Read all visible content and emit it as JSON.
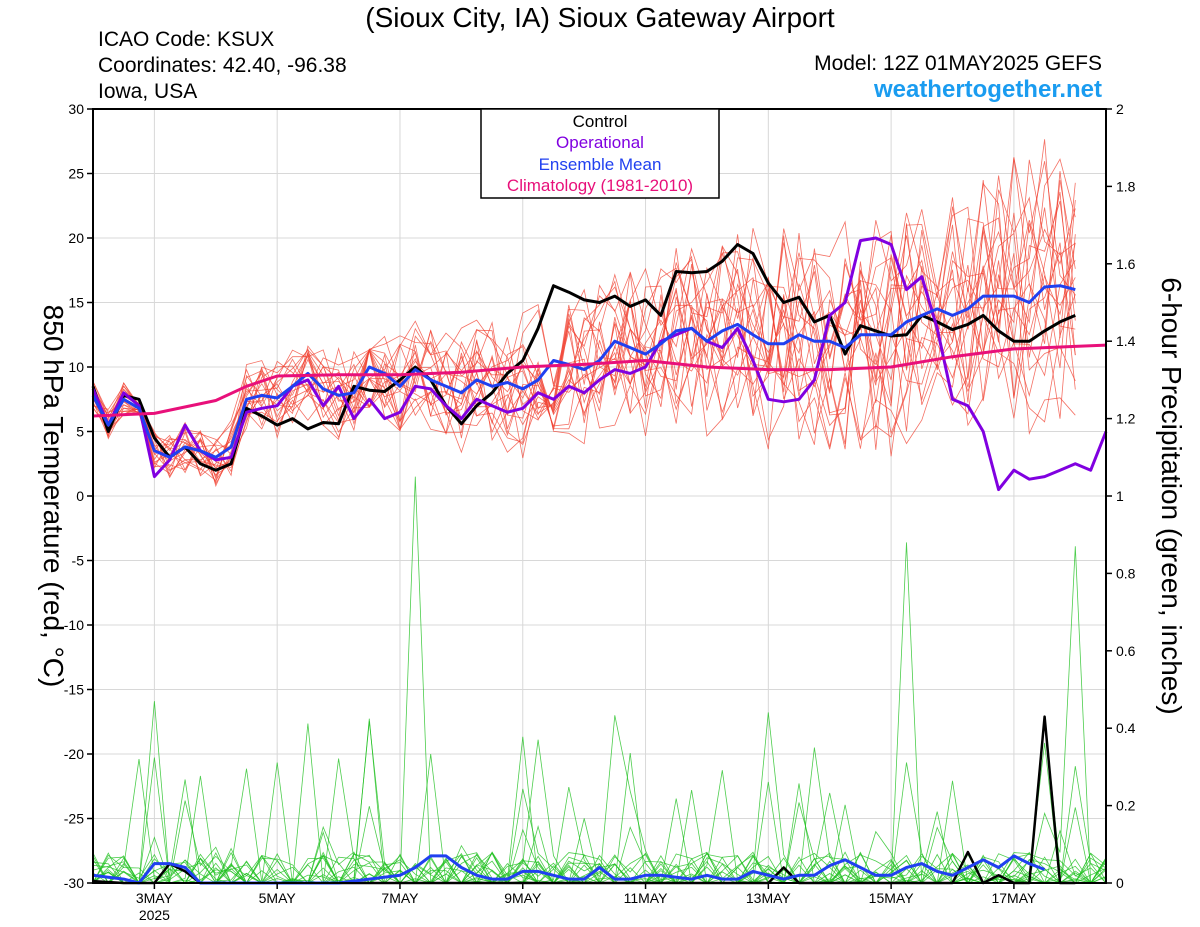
{
  "header": {
    "title": "(Sioux City, IA) Sioux Gateway Airport",
    "icao": "ICAO Code: KSUX",
    "coordinates": "Coordinates: 42.40, -96.38",
    "region": "Iowa, USA",
    "model": "Model: 12Z 01MAY2025 GEFS",
    "site": "weathertogether.net"
  },
  "colors": {
    "control": "#000000",
    "operational": "#8000e0",
    "ensemble_mean": "#2040f0",
    "climatology": "#e8107a",
    "members_temp": "#f04030",
    "members_precip": "#20c020",
    "site": "#1a9cf0"
  },
  "chart_data": {
    "type": "line",
    "title": "(Sioux City, IA) Sioux Gateway Airport",
    "ylabel": "850 hPa Temperature (red, °C)",
    "y2label": "6-hour Precipitation (green, inches)",
    "ylim": [
      -30,
      30
    ],
    "y2lim": [
      0,
      2
    ],
    "yticks": [
      30,
      25,
      20,
      15,
      10,
      5,
      0,
      -5,
      -10,
      -15,
      -20,
      -25,
      -30
    ],
    "y2ticks": [
      2,
      1.8,
      1.6,
      1.4,
      1.2,
      1,
      0.8,
      0.6,
      0.4,
      0.2,
      0
    ],
    "x_unit": "days since 01MAY2025 00Z",
    "xlim": [
      1.0,
      17.5
    ],
    "xticks": [
      {
        "x": 2,
        "label": "3MAY",
        "sub": "2025"
      },
      {
        "x": 4,
        "label": "5MAY",
        "sub": ""
      },
      {
        "x": 6,
        "label": "7MAY",
        "sub": ""
      },
      {
        "x": 8,
        "label": "9MAY",
        "sub": ""
      },
      {
        "x": 10,
        "label": "11MAY",
        "sub": ""
      },
      {
        "x": 12,
        "label": "13MAY",
        "sub": ""
      },
      {
        "x": 14,
        "label": "15MAY",
        "sub": ""
      },
      {
        "x": 16,
        "label": "17MAY",
        "sub": ""
      }
    ],
    "legend": {
      "position": "top-center",
      "entries": [
        "Control",
        "Operational",
        "Ensemble Mean",
        "Climatology (1981-2010)"
      ]
    },
    "series": [
      {
        "name": "Control",
        "axis": "left",
        "points": [
          [
            1.0,
            8.5
          ],
          [
            1.25,
            5.0
          ],
          [
            1.5,
            7.8
          ],
          [
            1.75,
            7.5
          ],
          [
            2.0,
            4.5
          ],
          [
            2.25,
            3.0
          ],
          [
            2.5,
            3.8
          ],
          [
            2.75,
            2.5
          ],
          [
            3.0,
            2.0
          ],
          [
            3.25,
            2.5
          ],
          [
            3.5,
            6.8
          ],
          [
            3.75,
            6.2
          ],
          [
            4.0,
            5.5
          ],
          [
            4.25,
            6.0
          ],
          [
            4.5,
            5.2
          ],
          [
            4.75,
            5.7
          ],
          [
            5.0,
            5.6
          ],
          [
            5.25,
            8.5
          ],
          [
            5.5,
            8.2
          ],
          [
            5.75,
            8.1
          ],
          [
            6.0,
            9.0
          ],
          [
            6.25,
            10.0
          ],
          [
            6.5,
            9.0
          ],
          [
            6.75,
            7.0
          ],
          [
            7.0,
            5.6
          ],
          [
            7.25,
            7.0
          ],
          [
            7.5,
            8.0
          ],
          [
            7.75,
            9.5
          ],
          [
            8.0,
            10.5
          ],
          [
            8.25,
            13.0
          ],
          [
            8.5,
            16.3
          ],
          [
            8.75,
            15.8
          ],
          [
            9.0,
            15.2
          ],
          [
            9.25,
            15.0
          ],
          [
            9.5,
            15.5
          ],
          [
            9.75,
            14.7
          ],
          [
            10.0,
            15.2
          ],
          [
            10.25,
            14.0
          ],
          [
            10.5,
            17.4
          ],
          [
            10.75,
            17.3
          ],
          [
            11.0,
            17.4
          ],
          [
            11.25,
            18.2
          ],
          [
            11.5,
            19.5
          ],
          [
            11.75,
            18.8
          ],
          [
            12.0,
            16.5
          ],
          [
            12.25,
            15.0
          ],
          [
            12.5,
            15.4
          ],
          [
            12.75,
            13.5
          ],
          [
            13.0,
            14.0
          ],
          [
            13.25,
            11.0
          ],
          [
            13.5,
            13.2
          ],
          [
            13.75,
            12.8
          ],
          [
            14.0,
            12.4
          ],
          [
            14.25,
            12.5
          ],
          [
            14.5,
            14.0
          ],
          [
            14.75,
            13.5
          ],
          [
            15.0,
            12.9
          ],
          [
            15.25,
            13.3
          ],
          [
            15.5,
            14.0
          ],
          [
            15.75,
            12.8
          ],
          [
            16.0,
            12.0
          ],
          [
            16.25,
            12.0
          ],
          [
            16.5,
            12.8
          ],
          [
            16.75,
            13.5
          ],
          [
            17.0,
            14.0
          ]
        ]
      },
      {
        "name": "Operational",
        "axis": "left",
        "points": [
          [
            1.0,
            8.3
          ],
          [
            1.25,
            5.5
          ],
          [
            1.5,
            8.0
          ],
          [
            1.75,
            7.0
          ],
          [
            2.0,
            1.5
          ],
          [
            2.25,
            2.8
          ],
          [
            2.5,
            5.5
          ],
          [
            2.75,
            3.5
          ],
          [
            3.0,
            2.8
          ],
          [
            3.25,
            3.0
          ],
          [
            3.5,
            6.5
          ],
          [
            3.75,
            6.8
          ],
          [
            4.0,
            7.0
          ],
          [
            4.25,
            8.5
          ],
          [
            4.5,
            9.0
          ],
          [
            4.75,
            7.0
          ],
          [
            5.0,
            8.5
          ],
          [
            5.25,
            6.0
          ],
          [
            5.5,
            7.5
          ],
          [
            5.75,
            6.0
          ],
          [
            6.0,
            6.5
          ],
          [
            6.25,
            8.5
          ],
          [
            6.5,
            8.3
          ],
          [
            6.75,
            7.0
          ],
          [
            7.0,
            6.0
          ],
          [
            7.25,
            7.5
          ],
          [
            7.5,
            7.0
          ],
          [
            7.75,
            6.5
          ],
          [
            8.0,
            6.8
          ],
          [
            8.25,
            8.0
          ],
          [
            8.5,
            7.5
          ],
          [
            8.75,
            8.5
          ],
          [
            9.0,
            8.0
          ],
          [
            9.25,
            9.0
          ],
          [
            9.5,
            9.8
          ],
          [
            9.75,
            9.5
          ],
          [
            10.0,
            10.0
          ],
          [
            10.25,
            12.0
          ],
          [
            10.5,
            12.5
          ],
          [
            10.75,
            13.0
          ],
          [
            11.0,
            12.0
          ],
          [
            11.25,
            11.5
          ],
          [
            11.5,
            13.0
          ],
          [
            11.75,
            10.5
          ],
          [
            12.0,
            7.5
          ],
          [
            12.25,
            7.3
          ],
          [
            12.5,
            7.5
          ],
          [
            12.75,
            9.0
          ],
          [
            13.0,
            14.0
          ],
          [
            13.25,
            15.0
          ],
          [
            13.5,
            19.8
          ],
          [
            13.75,
            20.0
          ],
          [
            14.0,
            19.5
          ],
          [
            14.25,
            16.0
          ],
          [
            14.5,
            17.0
          ],
          [
            14.75,
            13.0
          ],
          [
            15.0,
            7.5
          ],
          [
            15.25,
            7.0
          ],
          [
            15.5,
            5.0
          ],
          [
            15.75,
            0.5
          ],
          [
            16.0,
            2.0
          ],
          [
            16.25,
            1.3
          ],
          [
            16.5,
            1.5
          ],
          [
            16.75,
            2.0
          ],
          [
            17.0,
            2.5
          ],
          [
            17.25,
            2.0
          ],
          [
            17.5,
            5.0
          ]
        ]
      },
      {
        "name": "Ensemble Mean",
        "axis": "left",
        "points": [
          [
            1.0,
            7.8
          ],
          [
            1.25,
            5.5
          ],
          [
            1.5,
            7.5
          ],
          [
            1.75,
            6.8
          ],
          [
            2.0,
            3.5
          ],
          [
            2.25,
            3.0
          ],
          [
            2.5,
            3.8
          ],
          [
            2.75,
            3.5
          ],
          [
            3.0,
            3.0
          ],
          [
            3.25,
            3.8
          ],
          [
            3.5,
            7.5
          ],
          [
            3.75,
            7.8
          ],
          [
            4.0,
            7.6
          ],
          [
            4.25,
            8.5
          ],
          [
            4.5,
            9.5
          ],
          [
            4.75,
            8.3
          ],
          [
            5.0,
            7.8
          ],
          [
            5.25,
            8.0
          ],
          [
            5.5,
            10.0
          ],
          [
            5.75,
            9.5
          ],
          [
            6.0,
            8.5
          ],
          [
            6.25,
            9.8
          ],
          [
            6.5,
            9.0
          ],
          [
            6.75,
            8.5
          ],
          [
            7.0,
            8.0
          ],
          [
            7.25,
            9.0
          ],
          [
            7.5,
            8.5
          ],
          [
            7.75,
            8.8
          ],
          [
            8.0,
            8.3
          ],
          [
            8.25,
            9.0
          ],
          [
            8.5,
            10.5
          ],
          [
            8.75,
            10.2
          ],
          [
            9.0,
            9.8
          ],
          [
            9.25,
            10.5
          ],
          [
            9.5,
            12.0
          ],
          [
            9.75,
            11.5
          ],
          [
            10.0,
            11.0
          ],
          [
            10.25,
            11.8
          ],
          [
            10.5,
            12.8
          ],
          [
            10.75,
            13.0
          ],
          [
            11.0,
            12.0
          ],
          [
            11.25,
            12.8
          ],
          [
            11.5,
            13.3
          ],
          [
            11.75,
            12.5
          ],
          [
            12.0,
            11.8
          ],
          [
            12.25,
            11.8
          ],
          [
            12.5,
            12.5
          ],
          [
            12.75,
            12.0
          ],
          [
            13.0,
            12.0
          ],
          [
            13.25,
            11.5
          ],
          [
            13.5,
            12.5
          ],
          [
            13.75,
            12.5
          ],
          [
            14.0,
            12.5
          ],
          [
            14.25,
            13.5
          ],
          [
            14.5,
            14.0
          ],
          [
            14.75,
            14.5
          ],
          [
            15.0,
            14.0
          ],
          [
            15.25,
            14.5
          ],
          [
            15.5,
            15.5
          ],
          [
            15.75,
            15.5
          ],
          [
            16.0,
            15.5
          ],
          [
            16.25,
            15.0
          ],
          [
            16.5,
            16.2
          ],
          [
            16.75,
            16.3
          ],
          [
            17.0,
            16.0
          ]
        ]
      },
      {
        "name": "Climatology (1981-2010)",
        "axis": "left",
        "points": [
          [
            1.0,
            6.2
          ],
          [
            2.0,
            6.4
          ],
          [
            3.0,
            7.4
          ],
          [
            3.5,
            8.5
          ],
          [
            4.0,
            9.3
          ],
          [
            5.0,
            9.4
          ],
          [
            6.0,
            9.4
          ],
          [
            7.0,
            9.6
          ],
          [
            8.0,
            10.0
          ],
          [
            9.0,
            10.2
          ],
          [
            10.0,
            10.5
          ],
          [
            11.0,
            10.0
          ],
          [
            12.0,
            9.8
          ],
          [
            13.0,
            9.8
          ],
          [
            14.0,
            10.0
          ],
          [
            15.0,
            10.8
          ],
          [
            16.0,
            11.4
          ],
          [
            17.0,
            11.6
          ],
          [
            17.5,
            11.7
          ]
        ]
      },
      {
        "name": "Control Precipitation",
        "axis": "right",
        "points": [
          [
            1.0,
            0.005
          ],
          [
            1.5,
            0.0
          ],
          [
            2.0,
            0.0
          ],
          [
            2.25,
            0.05
          ],
          [
            2.5,
            0.03
          ],
          [
            2.75,
            0.0
          ],
          [
            12.0,
            0.0
          ],
          [
            12.25,
            0.04
          ],
          [
            12.5,
            0.0
          ],
          [
            15.0,
            0.0
          ],
          [
            15.25,
            0.08
          ],
          [
            15.5,
            0.0
          ],
          [
            15.75,
            0.02
          ],
          [
            16.0,
            0.0
          ],
          [
            16.25,
            0.0
          ],
          [
            16.5,
            0.43
          ],
          [
            16.75,
            0.0
          ],
          [
            17.0,
            0.0
          ]
        ]
      },
      {
        "name": "Ensemble Mean Precipitation",
        "axis": "right",
        "points": [
          [
            1.0,
            0.02
          ],
          [
            1.25,
            0.015
          ],
          [
            1.5,
            0.01
          ],
          [
            1.75,
            0.0
          ],
          [
            2.0,
            0.05
          ],
          [
            2.25,
            0.05
          ],
          [
            2.5,
            0.04
          ],
          [
            2.75,
            0.0
          ],
          [
            3.0,
            0.0
          ],
          [
            5.0,
            0.0
          ],
          [
            5.5,
            0.01
          ],
          [
            6.0,
            0.02
          ],
          [
            6.25,
            0.04
          ],
          [
            6.5,
            0.07
          ],
          [
            6.75,
            0.07
          ],
          [
            7.0,
            0.04
          ],
          [
            7.25,
            0.02
          ],
          [
            7.5,
            0.01
          ],
          [
            7.75,
            0.01
          ],
          [
            8.0,
            0.03
          ],
          [
            8.25,
            0.03
          ],
          [
            8.5,
            0.02
          ],
          [
            8.75,
            0.01
          ],
          [
            9.0,
            0.01
          ],
          [
            9.25,
            0.04
          ],
          [
            9.5,
            0.01
          ],
          [
            9.75,
            0.01
          ],
          [
            10.0,
            0.02
          ],
          [
            10.25,
            0.02
          ],
          [
            10.5,
            0.015
          ],
          [
            10.75,
            0.01
          ],
          [
            11.0,
            0.02
          ],
          [
            11.25,
            0.01
          ],
          [
            11.5,
            0.01
          ],
          [
            11.75,
            0.03
          ],
          [
            12.0,
            0.02
          ],
          [
            12.25,
            0.01
          ],
          [
            12.5,
            0.02
          ],
          [
            12.75,
            0.02
          ],
          [
            13.0,
            0.045
          ],
          [
            13.25,
            0.06
          ],
          [
            13.5,
            0.04
          ],
          [
            13.75,
            0.02
          ],
          [
            14.0,
            0.02
          ],
          [
            14.25,
            0.04
          ],
          [
            14.5,
            0.05
          ],
          [
            14.75,
            0.03
          ],
          [
            15.0,
            0.02
          ],
          [
            15.25,
            0.04
          ],
          [
            15.5,
            0.06
          ],
          [
            15.75,
            0.04
          ],
          [
            16.0,
            0.07
          ],
          [
            16.25,
            0.05
          ],
          [
            16.5,
            0.035
          ]
        ]
      }
    ]
  }
}
